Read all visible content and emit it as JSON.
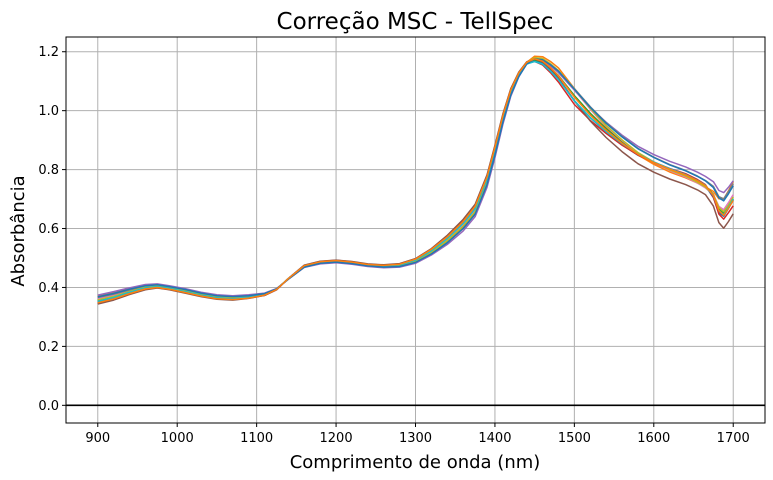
{
  "chart_data": {
    "type": "line",
    "title": "Correção MSC - TellSpec",
    "xlabel": "Comprimento de onda (nm)",
    "ylabel": "Absorbância",
    "xlim": [
      860,
      1740
    ],
    "ylim": [
      -0.06,
      1.25
    ],
    "xticks": [
      900,
      1000,
      1100,
      1200,
      1300,
      1400,
      1500,
      1600,
      1700
    ],
    "yticks": [
      0.0,
      0.2,
      0.4,
      0.6,
      0.8,
      1.0,
      1.2
    ],
    "xtick_labels": [
      "900",
      "1000",
      "1100",
      "1200",
      "1300",
      "1400",
      "1500",
      "1600",
      "1700"
    ],
    "ytick_labels": [
      "0.0",
      "0.2",
      "0.4",
      "0.6",
      "0.8",
      "1.0",
      "1.2"
    ],
    "grid": true,
    "legend": "none",
    "reference_line": {
      "y": 0.0,
      "color": "#000000"
    },
    "x": [
      900,
      920,
      940,
      960,
      975,
      990,
      1010,
      1030,
      1050,
      1070,
      1090,
      1110,
      1125,
      1140,
      1160,
      1180,
      1200,
      1220,
      1240,
      1260,
      1280,
      1300,
      1320,
      1340,
      1360,
      1375,
      1390,
      1400,
      1410,
      1420,
      1430,
      1440,
      1450,
      1460,
      1470,
      1480,
      1500,
      1520,
      1540,
      1560,
      1580,
      1600,
      1620,
      1640,
      1655,
      1665,
      1675,
      1682,
      1688,
      1694,
      1700
    ],
    "mean_spectrum": [
      0.36,
      0.372,
      0.388,
      0.402,
      0.406,
      0.4,
      0.39,
      0.378,
      0.369,
      0.366,
      0.37,
      0.378,
      0.395,
      0.43,
      0.472,
      0.485,
      0.489,
      0.484,
      0.476,
      0.472,
      0.475,
      0.49,
      0.52,
      0.56,
      0.61,
      0.66,
      0.76,
      0.86,
      0.97,
      1.06,
      1.12,
      1.16,
      1.175,
      1.17,
      1.15,
      1.125,
      1.06,
      0.995,
      0.94,
      0.895,
      0.855,
      0.825,
      0.8,
      0.78,
      0.76,
      0.745,
      0.72,
      0.675,
      0.66,
      0.68,
      0.7
    ],
    "series": [
      {
        "color": "#1f77b4",
        "values": [
          0.35,
          0.364,
          0.383,
          0.398,
          0.402,
          0.396,
          0.385,
          0.373,
          0.364,
          0.361,
          0.366,
          0.375,
          0.394,
          0.43,
          0.474,
          0.487,
          0.491,
          0.486,
          0.478,
          0.475,
          0.479,
          0.495,
          0.527,
          0.57,
          0.622,
          0.673,
          0.773,
          0.873,
          0.981,
          1.069,
          1.127,
          1.163,
          1.172,
          1.162,
          1.138,
          1.109,
          1.034,
          0.976,
          0.928,
          0.885,
          0.849,
          0.822,
          0.799,
          0.78,
          0.76,
          0.744,
          0.705,
          0.653,
          0.642,
          0.668,
          0.697
        ]
      },
      {
        "color": "#ff7f0e",
        "values": [
          0.37,
          0.382,
          0.396,
          0.407,
          0.41,
          0.404,
          0.394,
          0.382,
          0.373,
          0.37,
          0.373,
          0.38,
          0.395,
          0.428,
          0.469,
          0.482,
          0.486,
          0.481,
          0.473,
          0.469,
          0.471,
          0.485,
          0.514,
          0.552,
          0.6,
          0.649,
          0.749,
          0.849,
          0.961,
          1.054,
          1.118,
          1.164,
          1.185,
          1.183,
          1.167,
          1.145,
          1.075,
          1.005,
          0.945,
          0.894,
          0.85,
          0.818,
          0.792,
          0.772,
          0.754,
          0.741,
          0.726,
          0.701,
          0.7,
          0.728,
          0.76
        ]
      },
      {
        "color": "#2ca02c",
        "values": [
          0.356,
          0.368,
          0.385,
          0.4,
          0.404,
          0.398,
          0.388,
          0.376,
          0.367,
          0.364,
          0.368,
          0.376,
          0.394,
          0.43,
          0.472,
          0.485,
          0.489,
          0.484,
          0.476,
          0.472,
          0.475,
          0.49,
          0.521,
          0.562,
          0.612,
          0.662,
          0.762,
          0.862,
          0.972,
          1.061,
          1.121,
          1.16,
          1.172,
          1.166,
          1.145,
          1.119,
          1.051,
          0.991,
          0.939,
          0.894,
          0.855,
          0.825,
          0.8,
          0.78,
          0.76,
          0.745,
          0.716,
          0.668,
          0.652,
          0.674,
          0.7
        ]
      },
      {
        "color": "#d62728",
        "values": [
          0.346,
          0.36,
          0.378,
          0.394,
          0.399,
          0.393,
          0.382,
          0.37,
          0.361,
          0.358,
          0.364,
          0.373,
          0.392,
          0.43,
          0.475,
          0.488,
          0.492,
          0.487,
          0.479,
          0.476,
          0.48,
          0.497,
          0.53,
          0.574,
          0.627,
          0.678,
          0.778,
          0.878,
          0.985,
          1.072,
          1.128,
          1.161,
          1.167,
          1.155,
          1.129,
          1.097,
          1.021,
          0.967,
          0.923,
          0.883,
          0.85,
          0.825,
          0.804,
          0.786,
          0.766,
          0.749,
          0.706,
          0.649,
          0.632,
          0.654,
          0.677
        ]
      },
      {
        "color": "#9467bd",
        "values": [
          0.374,
          0.386,
          0.399,
          0.41,
          0.412,
          0.406,
          0.396,
          0.384,
          0.375,
          0.372,
          0.375,
          0.381,
          0.396,
          0.428,
          0.468,
          0.48,
          0.484,
          0.479,
          0.471,
          0.467,
          0.469,
          0.482,
          0.51,
          0.546,
          0.592,
          0.64,
          0.74,
          0.84,
          0.954,
          1.049,
          1.115,
          1.159,
          1.176,
          1.171,
          1.152,
          1.129,
          1.069,
          1.01,
          0.961,
          0.917,
          0.879,
          0.851,
          0.828,
          0.809,
          0.791,
          0.777,
          0.759,
          0.729,
          0.722,
          0.74,
          0.762
        ]
      },
      {
        "color": "#8c564b",
        "values": [
          0.344,
          0.357,
          0.376,
          0.392,
          0.398,
          0.392,
          0.381,
          0.369,
          0.36,
          0.357,
          0.363,
          0.373,
          0.392,
          0.431,
          0.476,
          0.489,
          0.493,
          0.488,
          0.48,
          0.477,
          0.481,
          0.498,
          0.532,
          0.577,
          0.631,
          0.682,
          0.782,
          0.882,
          0.989,
          1.075,
          1.131,
          1.166,
          1.175,
          1.165,
          1.141,
          1.111,
          1.033,
          0.965,
          0.909,
          0.861,
          0.82,
          0.791,
          0.768,
          0.749,
          0.731,
          0.715,
          0.676,
          0.62,
          0.601,
          0.624,
          0.65
        ]
      },
      {
        "color": "#e377c2",
        "values": [
          0.362,
          0.374,
          0.389,
          0.403,
          0.406,
          0.4,
          0.39,
          0.378,
          0.369,
          0.366,
          0.37,
          0.378,
          0.395,
          0.43,
          0.472,
          0.485,
          0.489,
          0.484,
          0.476,
          0.472,
          0.475,
          0.49,
          0.521,
          0.562,
          0.612,
          0.662,
          0.762,
          0.862,
          0.972,
          1.061,
          1.121,
          1.162,
          1.179,
          1.176,
          1.158,
          1.134,
          1.07,
          1.005,
          0.948,
          0.899,
          0.856,
          0.824,
          0.797,
          0.775,
          0.754,
          0.738,
          0.715,
          0.675,
          0.664,
          0.688,
          0.715
        ]
      },
      {
        "color": "#7f7f7f",
        "values": [
          0.366,
          0.377,
          0.391,
          0.404,
          0.407,
          0.401,
          0.391,
          0.379,
          0.37,
          0.367,
          0.371,
          0.378,
          0.395,
          0.429,
          0.47,
          0.483,
          0.487,
          0.482,
          0.474,
          0.47,
          0.473,
          0.487,
          0.517,
          0.556,
          0.604,
          0.653,
          0.753,
          0.853,
          0.964,
          1.056,
          1.118,
          1.16,
          1.177,
          1.174,
          1.157,
          1.135,
          1.075,
          1.013,
          0.959,
          0.913,
          0.872,
          0.842,
          0.817,
          0.797,
          0.778,
          0.763,
          0.743,
          0.708,
          0.701,
          0.726,
          0.752
        ]
      },
      {
        "color": "#bcbd22",
        "values": [
          0.358,
          0.37,
          0.386,
          0.401,
          0.405,
          0.399,
          0.389,
          0.377,
          0.368,
          0.365,
          0.369,
          0.377,
          0.394,
          0.43,
          0.471,
          0.484,
          0.488,
          0.483,
          0.475,
          0.471,
          0.474,
          0.489,
          0.519,
          0.559,
          0.608,
          0.657,
          0.757,
          0.857,
          0.968,
          1.058,
          1.12,
          1.162,
          1.18,
          1.177,
          1.159,
          1.136,
          1.073,
          1.008,
          0.95,
          0.901,
          0.858,
          0.826,
          0.799,
          0.778,
          0.757,
          0.741,
          0.714,
          0.671,
          0.657,
          0.68,
          0.707
        ]
      },
      {
        "color": "#17becf",
        "values": [
          0.353,
          0.366,
          0.384,
          0.399,
          0.403,
          0.397,
          0.386,
          0.374,
          0.365,
          0.362,
          0.367,
          0.375,
          0.394,
          0.43,
          0.473,
          0.486,
          0.49,
          0.485,
          0.477,
          0.474,
          0.477,
          0.493,
          0.524,
          0.566,
          0.617,
          0.667,
          0.767,
          0.867,
          0.976,
          1.064,
          1.123,
          1.158,
          1.167,
          1.158,
          1.134,
          1.105,
          1.033,
          0.976,
          0.929,
          0.888,
          0.853,
          0.826,
          0.803,
          0.783,
          0.763,
          0.747,
          0.711,
          0.66,
          0.647,
          0.672,
          0.7
        ]
      },
      {
        "color": "#1f77b4",
        "values": [
          0.368,
          0.38,
          0.394,
          0.406,
          0.409,
          0.403,
          0.393,
          0.381,
          0.372,
          0.369,
          0.372,
          0.379,
          0.395,
          0.428,
          0.469,
          0.482,
          0.486,
          0.481,
          0.473,
          0.469,
          0.471,
          0.485,
          0.514,
          0.552,
          0.6,
          0.649,
          0.749,
          0.849,
          0.961,
          1.053,
          1.116,
          1.158,
          1.176,
          1.173,
          1.156,
          1.134,
          1.072,
          1.011,
          0.957,
          0.911,
          0.871,
          0.841,
          0.816,
          0.796,
          0.777,
          0.762,
          0.739,
          0.704,
          0.694,
          0.718,
          0.745
        ]
      },
      {
        "color": "#ff7f0e",
        "values": [
          0.348,
          0.361,
          0.379,
          0.395,
          0.4,
          0.394,
          0.383,
          0.371,
          0.362,
          0.359,
          0.364,
          0.374,
          0.393,
          0.43,
          0.474,
          0.487,
          0.491,
          0.486,
          0.478,
          0.475,
          0.479,
          0.496,
          0.529,
          0.572,
          0.624,
          0.675,
          0.775,
          0.875,
          0.983,
          1.07,
          1.128,
          1.164,
          1.176,
          1.168,
          1.146,
          1.118,
          1.046,
          0.985,
          0.934,
          0.89,
          0.852,
          0.824,
          0.801,
          0.782,
          0.762,
          0.746,
          0.713,
          0.661,
          0.645,
          0.669,
          0.695
        ]
      }
    ]
  }
}
